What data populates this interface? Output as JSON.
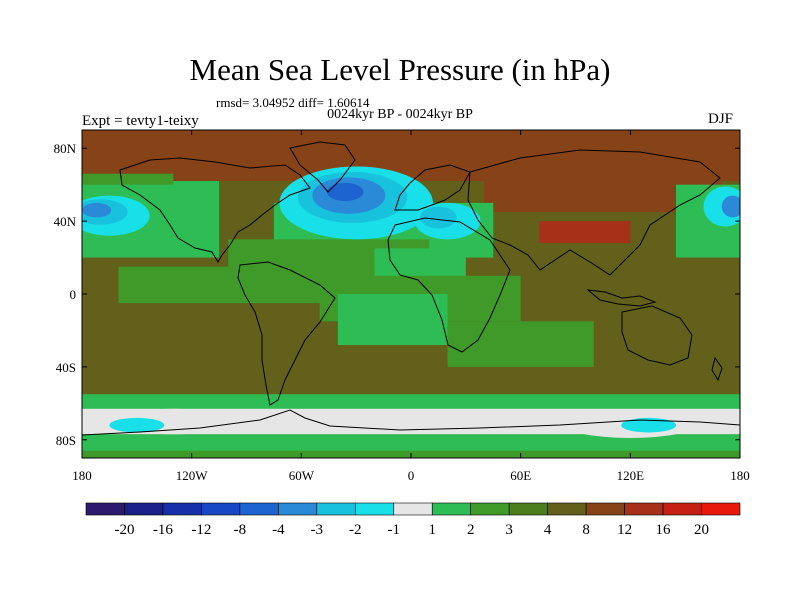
{
  "chart_data": {
    "type": "heatmap",
    "title": "Mean Sea Level Pressure (in hPa)",
    "stats_text": "rmsd= 3.04952 diff= 1.60614",
    "subtitle": "0024kyr BP - 0024kyr BP",
    "left_label": "Expt = tevty1-teixy",
    "right_label": "DJF",
    "x_ticks": [
      "180",
      "120W",
      "60W",
      "0",
      "60E",
      "120E",
      "180"
    ],
    "y_ticks": [
      "80N",
      "40N",
      "0",
      "40S",
      "80S"
    ],
    "levels": [
      -20,
      -16,
      -12,
      -8,
      -4,
      -3,
      -2,
      -1,
      1,
      2,
      3,
      4,
      8,
      12,
      16,
      20
    ],
    "level_labels": [
      "-20",
      "-16",
      "-12",
      "-8",
      "-4",
      "-3",
      "-2",
      "-1",
      "1",
      "2",
      "3",
      "4",
      "8",
      "12",
      "16",
      "20"
    ],
    "colors": [
      "#2c1a6e",
      "#1a1f8a",
      "#1530a8",
      "#1747c4",
      "#1e64d0",
      "#2a8ad8",
      "#19c2dc",
      "#19e0e8",
      "#e6e6e6",
      "#2ebd55",
      "#3f9a2a",
      "#4d7e1e",
      "#62601a",
      "#874318",
      "#a63018",
      "#c61f14",
      "#e8180c"
    ],
    "xlim": [
      -180,
      180
    ],
    "ylim": [
      -90,
      90
    ],
    "regions": [
      {
        "label": "background",
        "lon": -180,
        "lat": 90,
        "w": 360,
        "h": 180,
        "level": 4
      },
      {
        "label": "arctic",
        "lon": -180,
        "lat": 90,
        "w": 360,
        "h": 28,
        "level": 8
      },
      {
        "label": "siberia",
        "lon": 40,
        "lat": 75,
        "w": 130,
        "h": 30,
        "level": 8
      },
      {
        "label": "asia-high",
        "lon": 70,
        "lat": 40,
        "w": 50,
        "h": 12,
        "level": 12
      },
      {
        "label": "aleutian-white",
        "lon": -180,
        "lat": 62,
        "w": 75,
        "h": 42,
        "level": 1
      },
      {
        "label": "aleutian-white-east",
        "lon": 145,
        "lat": 60,
        "w": 35,
        "h": 40,
        "level": 1
      },
      {
        "label": "n-pacific-green",
        "lon": -180,
        "lat": 66,
        "w": 50,
        "h": 6,
        "level": 2
      },
      {
        "label": "n-atlantic-white",
        "lon": -75,
        "lat": 50,
        "w": 120,
        "h": 30,
        "level": 1
      },
      {
        "label": "atlantic-green",
        "lon": -100,
        "lat": 30,
        "w": 110,
        "h": 20,
        "level": 2
      },
      {
        "label": "n-africa-white",
        "lon": -20,
        "lat": 25,
        "w": 50,
        "h": 20,
        "level": 1
      },
      {
        "label": "pacific-green",
        "lon": -160,
        "lat": 15,
        "w": 140,
        "h": 20,
        "level": 2
      },
      {
        "label": "trop-green",
        "lon": -50,
        "lat": 10,
        "w": 110,
        "h": 25,
        "level": 2
      },
      {
        "label": "s-atlantic-white",
        "lon": -40,
        "lat": 0,
        "w": 60,
        "h": 28,
        "level": 1
      },
      {
        "label": "indian-green",
        "lon": 20,
        "lat": -15,
        "w": 80,
        "h": 25,
        "level": 2
      },
      {
        "label": "s-ocean-white",
        "lon": -180,
        "lat": -55,
        "w": 360,
        "h": 15,
        "level": 1
      },
      {
        "label": "s-ocean-cyan",
        "lon": -180,
        "lat": -63,
        "w": 360,
        "h": 14,
        "level": -1
      },
      {
        "label": "antarctic-white",
        "lon": -180,
        "lat": -77,
        "w": 360,
        "h": 13,
        "level": 1
      },
      {
        "label": "bottom-green",
        "lon": -180,
        "lat": -86,
        "w": 360,
        "h": 4,
        "level": 2
      }
    ],
    "blobs": [
      {
        "label": "n-pacific-low-outer",
        "lon": -165,
        "lat": 43,
        "rx": 22,
        "ry": 11,
        "level": -2
      },
      {
        "label": "n-pacific-low-mid",
        "lon": -170,
        "lat": 45,
        "rx": 15,
        "ry": 7,
        "level": -3
      },
      {
        "label": "n-pacific-low-core",
        "lon": -172,
        "lat": 46,
        "rx": 8,
        "ry": 4,
        "level": -4
      },
      {
        "label": "n-pacific-low-east-outer",
        "lon": 172,
        "lat": 48,
        "rx": 12,
        "ry": 11,
        "level": -2
      },
      {
        "label": "n-pacific-low-east-core",
        "lon": 176,
        "lat": 48,
        "rx": 6,
        "ry": 6,
        "level": -4
      },
      {
        "label": "n-atlantic-low-outer",
        "lon": -30,
        "lat": 50,
        "rx": 42,
        "ry": 20,
        "level": -2
      },
      {
        "label": "n-atlantic-low-mid",
        "lon": -32,
        "lat": 53,
        "rx": 30,
        "ry": 14,
        "level": -3
      },
      {
        "label": "n-atlantic-low-in",
        "lon": -34,
        "lat": 54,
        "rx": 20,
        "ry": 10,
        "level": -4
      },
      {
        "label": "n-atlantic-low-core",
        "lon": -36,
        "lat": 56,
        "rx": 10,
        "ry": 5,
        "level": -8
      },
      {
        "label": "med-low-outer",
        "lon": 20,
        "lat": 40,
        "rx": 18,
        "ry": 10,
        "level": -2
      },
      {
        "label": "med-low-core",
        "lon": 15,
        "lat": 42,
        "rx": 10,
        "ry": 6,
        "level": -3
      },
      {
        "label": "antarctic-cyan-1",
        "lon": -130,
        "lat": -70,
        "rx": 30,
        "ry": 7,
        "level": -1
      },
      {
        "label": "antarctic-cyan-2",
        "lon": 120,
        "lat": -72,
        "rx": 35,
        "ry": 7,
        "level": -1
      },
      {
        "label": "antarctic-blue-1",
        "lon": 130,
        "lat": -72,
        "rx": 15,
        "ry": 4,
        "level": -2
      },
      {
        "label": "antarctic-blue-2",
        "lon": -150,
        "lat": -72,
        "rx": 15,
        "ry": 4,
        "level": -2
      }
    ]
  }
}
